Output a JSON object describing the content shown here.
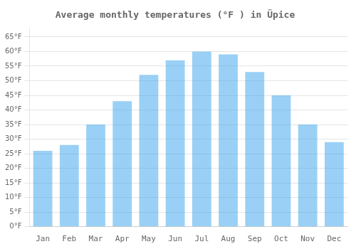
{
  "chart_data": {
    "type": "bar",
    "title": "Average monthly temperatures (°F ) in Üpice",
    "categories": [
      "Jan",
      "Feb",
      "Mar",
      "Apr",
      "May",
      "Jun",
      "Jul",
      "Aug",
      "Sep",
      "Oct",
      "Nov",
      "Dec"
    ],
    "values": [
      26,
      28,
      35,
      43,
      52,
      57,
      60,
      59,
      53,
      45,
      35,
      29
    ],
    "ylim": [
      0,
      68
    ],
    "yticks": [
      {
        "value": 0,
        "label": "0°F"
      },
      {
        "value": 5,
        "label": "5°F"
      },
      {
        "value": 10,
        "label": "10°F"
      },
      {
        "value": 15,
        "label": "15°F"
      },
      {
        "value": 20,
        "label": "20°F"
      },
      {
        "value": 25,
        "label": "25°F"
      },
      {
        "value": 30,
        "label": "30°F"
      },
      {
        "value": 35,
        "label": "35°F"
      },
      {
        "value": 40,
        "label": "40°F"
      },
      {
        "value": 45,
        "label": "45°F"
      },
      {
        "value": 50,
        "label": "50°F"
      },
      {
        "value": 55,
        "label": "55°F"
      },
      {
        "value": 60,
        "label": "60°F"
      },
      {
        "value": 65,
        "label": "65°F"
      }
    ],
    "grid": true
  }
}
